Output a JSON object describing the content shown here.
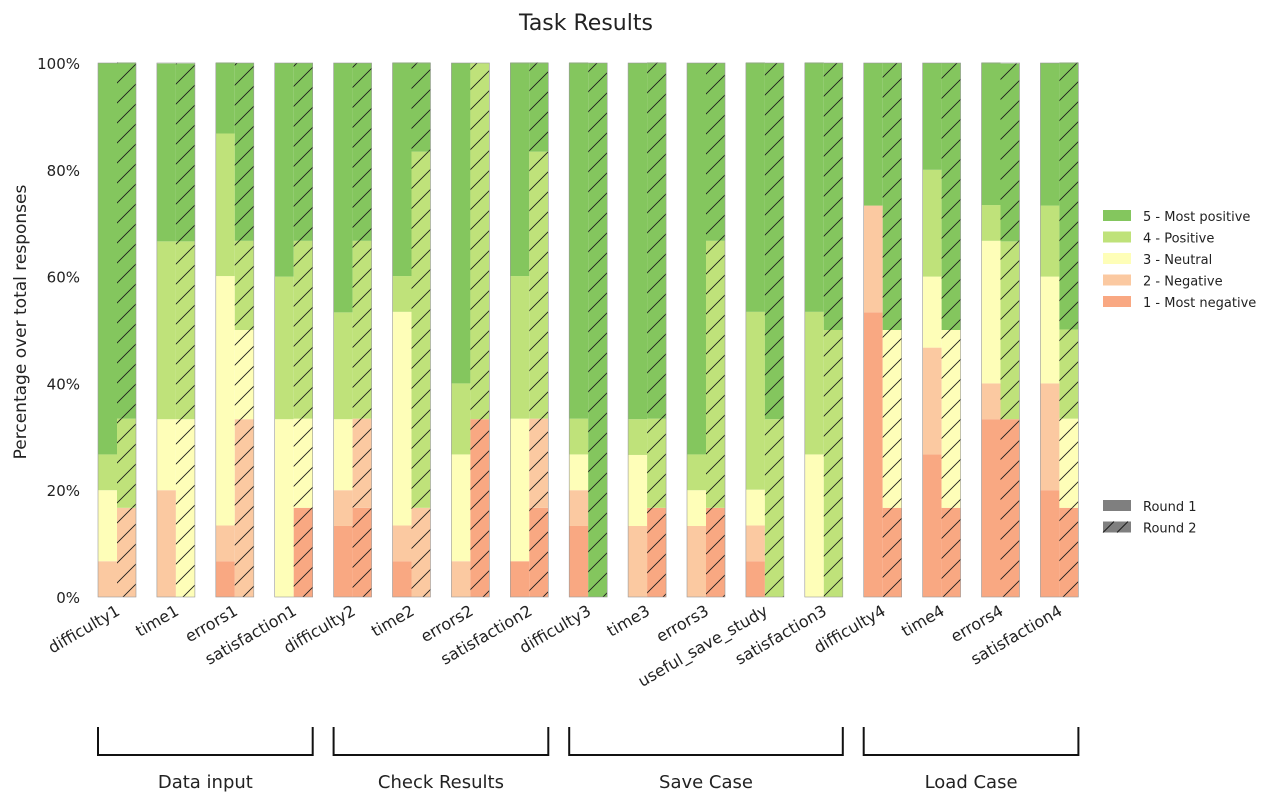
{
  "chart_data": {
    "type": "bar",
    "title": "Task Results",
    "ylabel": "Percentage over total responses",
    "ylim": [
      0,
      100
    ],
    "yticks": [
      "0%",
      "20%",
      "40%",
      "60%",
      "80%",
      "100%"
    ],
    "categories": [
      "difficulty1",
      "time1",
      "errors1",
      "satisfaction1",
      "difficulty2",
      "time2",
      "errors2",
      "satisfaction2",
      "difficulty3",
      "time3",
      "errors3",
      "useful_save_study",
      "satisfaction3",
      "difficulty4",
      "time4",
      "errors4",
      "satisfaction4"
    ],
    "levels": [
      {
        "name": "1 - Most negative",
        "color": "#f9a882"
      },
      {
        "name": "2 - Negative",
        "color": "#fbc9a1"
      },
      {
        "name": "3 - Neutral",
        "color": "#fefeb8"
      },
      {
        "name": "4 - Positive",
        "color": "#bfe27a"
      },
      {
        "name": "5 - Most positive",
        "color": "#84c65e"
      }
    ],
    "rounds": [
      {
        "name": "Round 1",
        "pattern": "solid"
      },
      {
        "name": "Round 2",
        "pattern": "hatched"
      }
    ],
    "series": [
      {
        "name": "Round 1",
        "values": [
          [
            0,
            6.7,
            13.3,
            6.7,
            73.3
          ],
          [
            0,
            20,
            13.3,
            33.3,
            33.3
          ],
          [
            6.7,
            6.7,
            46.7,
            26.7,
            13.3
          ],
          [
            0,
            0,
            33.3,
            26.7,
            40
          ],
          [
            13.3,
            6.7,
            13.3,
            20,
            46.7
          ],
          [
            6.7,
            6.7,
            40,
            6.7,
            40
          ],
          [
            0,
            6.7,
            20,
            13.3,
            60
          ],
          [
            6.7,
            0,
            26.7,
            26.7,
            40
          ],
          [
            13.3,
            6.7,
            6.7,
            6.7,
            66.7
          ],
          [
            0,
            13.3,
            13.3,
            6.7,
            66.7
          ],
          [
            0,
            13.3,
            6.7,
            6.7,
            73.3
          ],
          [
            6.7,
            6.7,
            6.7,
            33.3,
            46.7
          ],
          [
            0,
            0,
            26.7,
            26.7,
            46.7
          ],
          [
            53.3,
            20,
            0,
            0,
            26.7
          ],
          [
            26.7,
            20,
            13.3,
            20,
            20
          ],
          [
            33.3,
            6.7,
            26.7,
            6.7,
            26.7
          ],
          [
            20,
            20,
            20,
            13.3,
            26.7
          ]
        ]
      },
      {
        "name": "Round 2",
        "values": [
          [
            0,
            16.7,
            0,
            16.7,
            66.7
          ],
          [
            0,
            0,
            33.3,
            33.3,
            33.3
          ],
          [
            0,
            33.3,
            16.7,
            16.7,
            33.3
          ],
          [
            16.7,
            0,
            16.7,
            33.3,
            33.3
          ],
          [
            16.7,
            16.7,
            0,
            33.3,
            33.3
          ],
          [
            0,
            16.7,
            0,
            66.7,
            16.7
          ],
          [
            33.3,
            0,
            0,
            66.7,
            0
          ],
          [
            16.7,
            16.7,
            0,
            50,
            16.7
          ],
          [
            0,
            0,
            0,
            0,
            100
          ],
          [
            16.7,
            0,
            0,
            16.7,
            66.7
          ],
          [
            16.7,
            0,
            0,
            50,
            33.3
          ],
          [
            0,
            0,
            0,
            33.3,
            66.7
          ],
          [
            0,
            0,
            0,
            50,
            50
          ],
          [
            16.7,
            0,
            33.3,
            0,
            50
          ],
          [
            16.7,
            0,
            33.3,
            0,
            50
          ],
          [
            33.3,
            0,
            0,
            33.3,
            33.3
          ],
          [
            16.7,
            0,
            16.7,
            16.7,
            50
          ]
        ]
      }
    ],
    "groups": [
      {
        "label": "Data input",
        "start": 0,
        "end": 3
      },
      {
        "label": "Check Results",
        "start": 4,
        "end": 7
      },
      {
        "label": "Save Case",
        "start": 8,
        "end": 12
      },
      {
        "label": "Load Case",
        "start": 13,
        "end": 16
      }
    ],
    "legend_position": "right"
  }
}
